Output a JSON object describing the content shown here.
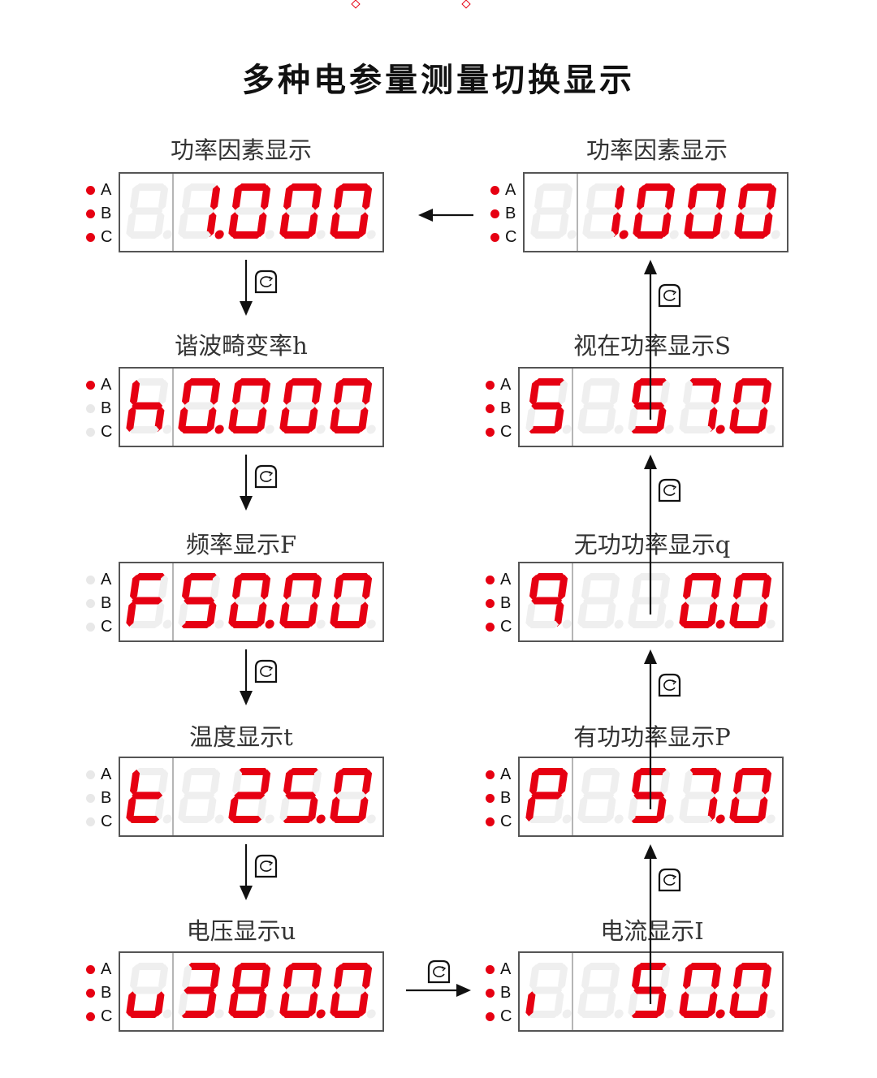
{
  "title": "多种电参量测量切换显示",
  "colors": {
    "segment_on": "#e60012",
    "segment_off": "#efefef",
    "indicator_on": "#e60012",
    "indicator_off": "#e8e8e8",
    "border": "#555555"
  },
  "indicator_labels": [
    "A",
    "B",
    "C"
  ],
  "key_icon": "cycle-key-icon",
  "panels": [
    {
      "id": "power-factor-left",
      "label": "功率因素显示",
      "chars": [
        "",
        "1.",
        "0",
        "0",
        "0"
      ],
      "indicators": [
        true,
        true,
        true
      ]
    },
    {
      "id": "harmonic",
      "label": "谐波畸变率h",
      "chars": [
        "h",
        "0.",
        "0",
        "0",
        "0"
      ],
      "indicators": [
        true,
        false,
        false
      ]
    },
    {
      "id": "frequency",
      "label": "频率显示F",
      "chars": [
        "F",
        "5",
        "0.",
        "0",
        "0"
      ],
      "indicators": [
        false,
        false,
        false
      ]
    },
    {
      "id": "temperature",
      "label": "温度显示t",
      "chars": [
        "t",
        "",
        "2",
        "5.",
        "0"
      ],
      "indicators": [
        false,
        false,
        false
      ]
    },
    {
      "id": "voltage",
      "label": "电压显示u",
      "chars": [
        "u",
        "3",
        "8",
        "0.",
        "0"
      ],
      "indicators": [
        true,
        true,
        true
      ]
    },
    {
      "id": "power-factor-right",
      "label": "功率因素显示",
      "chars": [
        "",
        "1.",
        "0",
        "0",
        "0"
      ],
      "indicators": [
        true,
        true,
        true
      ]
    },
    {
      "id": "apparent-power",
      "label": "视在功率显示S",
      "chars": [
        "5",
        "",
        "5",
        "7.",
        "0"
      ],
      "indicators": [
        true,
        true,
        true
      ]
    },
    {
      "id": "reactive-power",
      "label": "无功功率显示q",
      "chars": [
        "q",
        "",
        "",
        "0.",
        "0"
      ],
      "indicators": [
        true,
        true,
        true
      ]
    },
    {
      "id": "active-power",
      "label": "有功功率显示P",
      "chars": [
        "P",
        "",
        "5",
        "7.",
        "0"
      ],
      "indicators": [
        true,
        true,
        true
      ]
    },
    {
      "id": "current",
      "label": "电流显示I",
      "chars": [
        "i",
        "",
        "5",
        "0.",
        "0"
      ],
      "indicators": [
        true,
        true,
        true
      ]
    }
  ]
}
